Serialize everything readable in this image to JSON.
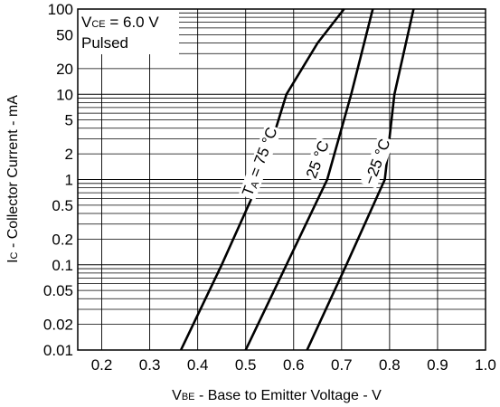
{
  "chart_data": {
    "type": "line",
    "xlabel": {
      "main": "V",
      "sub": "BE",
      "rest": " - Base to Emitter Voltage - V"
    },
    "ylabel": {
      "main": "I",
      "sub": "C",
      "rest": " - Collector Current - mA"
    },
    "xlim": [
      0.15,
      1.0
    ],
    "ylim": [
      0.01,
      100
    ],
    "yscale": "log",
    "grid": true,
    "x_tick_labels": [
      "0.2",
      "0.3",
      "0.4",
      "0.5",
      "0.6",
      "0.7",
      "0.8",
      "0.9",
      "1.0"
    ],
    "x_ticks": [
      0.2,
      0.3,
      0.4,
      0.5,
      0.6,
      0.7,
      0.8,
      0.9,
      1.0
    ],
    "y_tick_labels": [
      "100",
      "50",
      "20",
      "10",
      "5",
      "2",
      "1",
      "0.5",
      "0.2",
      "0.1",
      "0.05",
      "0.02",
      "0.01"
    ],
    "y_ticks": [
      100,
      50,
      20,
      10,
      5,
      2,
      1,
      0.5,
      0.2,
      0.1,
      0.05,
      0.02,
      0.01
    ],
    "condition": {
      "line1_main": "V",
      "line1_sub": "CE",
      "line1_rest": " = 6.0 V",
      "line2": "Pulsed"
    },
    "series": [
      {
        "name": "T = 75 °C",
        "label_main": "T",
        "label_sub": "A",
        "label_rest": " = 75 °C",
        "x": [
          0.365,
          0.45,
          0.53,
          0.585,
          0.65,
          0.705
        ],
        "y": [
          0.01,
          0.1,
          1,
          10,
          40,
          100
        ]
      },
      {
        "name": "25 °C",
        "label_main": "25 °C",
        "x": [
          0.5,
          0.585,
          0.67,
          0.72,
          0.765
        ],
        "y": [
          0.01,
          0.1,
          1,
          10,
          100
        ]
      },
      {
        "name": "−25 °C",
        "label_main": "−25 °C",
        "x": [
          0.628,
          0.71,
          0.79,
          0.81,
          0.85
        ],
        "y": [
          0.01,
          0.1,
          1,
          10,
          100
        ]
      }
    ]
  }
}
